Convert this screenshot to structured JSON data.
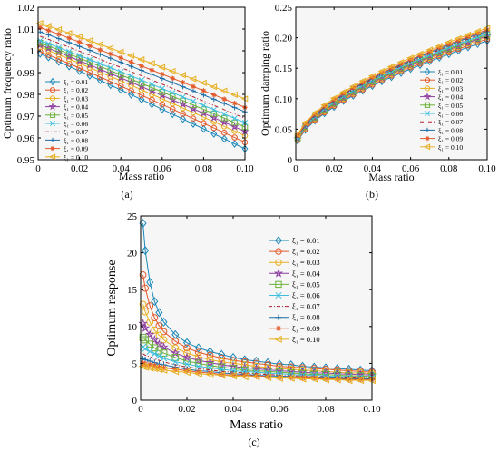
{
  "chart_data": [
    {
      "type": "line",
      "panel_label": "(a)",
      "xlabel": "Mass ratio",
      "ylabel": "Optimum frequency ratio",
      "xlim": [
        0,
        0.1
      ],
      "ylim": [
        0.95,
        1.02
      ],
      "xticks": [
        "0",
        "0.02",
        "0.04",
        "0.06",
        "0.08",
        "0.10"
      ],
      "yticks": [
        "0.95",
        "0.96",
        "0.97",
        "0.98",
        "0.99",
        "1",
        "1.01",
        "1.02"
      ],
      "legend_position": "left",
      "x": [
        0.001,
        0.005,
        0.01,
        0.015,
        0.02,
        0.025,
        0.03,
        0.035,
        0.04,
        0.045,
        0.05,
        0.055,
        0.06,
        0.065,
        0.07,
        0.075,
        0.08,
        0.085,
        0.09,
        0.095,
        0.1
      ],
      "series": [
        {
          "name": "ξ₁ = 0.01",
          "color": "#1a88b8",
          "marker": "diamond",
          "start": 0.999,
          "end": 0.955
        },
        {
          "name": "ξ₁ = 0.02",
          "color": "#e35a2c",
          "marker": "circle",
          "start": 1.0,
          "end": 0.958
        },
        {
          "name": "ξ₁ = 0.03",
          "color": "#e8b020",
          "marker": "circle",
          "start": 1.002,
          "end": 0.961
        },
        {
          "name": "ξ₁ = 0.04",
          "color": "#8e3fa0",
          "marker": "star",
          "start": 1.003,
          "end": 0.963
        },
        {
          "name": "ξ₁ = 0.05",
          "color": "#6ab23a",
          "marker": "square",
          "start": 1.004,
          "end": 0.965
        },
        {
          "name": "ξ₁ = 0.06",
          "color": "#3fbfe0",
          "marker": "x",
          "start": 1.005,
          "end": 0.967
        },
        {
          "name": "ξ₁ = 0.07",
          "color": "#b02030",
          "marker": "none",
          "start": 1.007,
          "end": 0.969
        },
        {
          "name": "ξ₁ = 0.08",
          "color": "#1c6fa8",
          "marker": "plus",
          "start": 1.009,
          "end": 0.972
        },
        {
          "name": "ξ₁ = 0.09",
          "color": "#e35a2c",
          "marker": "asterisk",
          "start": 1.011,
          "end": 0.974
        },
        {
          "name": "ξ₁ = 0.10",
          "color": "#e8b020",
          "marker": "triangle",
          "start": 1.013,
          "end": 0.978
        }
      ]
    },
    {
      "type": "line",
      "panel_label": "(b)",
      "xlabel": "Mass ratio",
      "ylabel": "Optimum damping ratio",
      "xlim": [
        0,
        0.1
      ],
      "ylim": [
        0,
        0.25
      ],
      "xticks": [
        "0",
        "0.02",
        "0.04",
        "0.06",
        "0.08",
        "0.10"
      ],
      "yticks": [
        "0",
        "0.05",
        "0.10",
        "0.15",
        "0.20",
        "0.25"
      ],
      "legend_position": "right",
      "x": [
        0.001,
        0.005,
        0.01,
        0.015,
        0.02,
        0.025,
        0.03,
        0.035,
        0.04,
        0.045,
        0.05,
        0.055,
        0.06,
        0.065,
        0.07,
        0.075,
        0.08,
        0.085,
        0.09,
        0.095,
        0.1
      ],
      "series": [
        {
          "name": "ξ₁ = 0.01",
          "color": "#1a88b8",
          "marker": "diamond",
          "start": 0.02,
          "end": 0.195
        },
        {
          "name": "ξ₁ = 0.02",
          "color": "#e35a2c",
          "marker": "circle",
          "start": 0.021,
          "end": 0.198
        },
        {
          "name": "ξ₁ = 0.03",
          "color": "#e8b020",
          "marker": "circle",
          "start": 0.022,
          "end": 0.201
        },
        {
          "name": "ξ₁ = 0.04",
          "color": "#8e3fa0",
          "marker": "star",
          "start": 0.023,
          "end": 0.203
        },
        {
          "name": "ξ₁ = 0.05",
          "color": "#6ab23a",
          "marker": "square",
          "start": 0.024,
          "end": 0.205
        },
        {
          "name": "ξ₁ = 0.06",
          "color": "#3fbfe0",
          "marker": "x",
          "start": 0.025,
          "end": 0.207
        },
        {
          "name": "ξ₁ = 0.07",
          "color": "#b02030",
          "marker": "none",
          "start": 0.026,
          "end": 0.209
        },
        {
          "name": "ξ₁ = 0.08",
          "color": "#1c6fa8",
          "marker": "plus",
          "start": 0.027,
          "end": 0.211
        },
        {
          "name": "ξ₁ = 0.09",
          "color": "#e35a2c",
          "marker": "asterisk",
          "start": 0.028,
          "end": 0.213
        },
        {
          "name": "ξ₁ = 0.10",
          "color": "#e8b020",
          "marker": "triangle",
          "start": 0.03,
          "end": 0.216
        }
      ]
    },
    {
      "type": "line",
      "panel_label": "(c)",
      "xlabel": "Mass ratio",
      "ylabel": "Optimum response",
      "xlim": [
        0,
        0.1
      ],
      "ylim": [
        0,
        25
      ],
      "xticks": [
        "0",
        "0.02",
        "0.04",
        "0.06",
        "0.08",
        "0.10"
      ],
      "yticks": [
        "0",
        "5",
        "10",
        "15",
        "20",
        "25"
      ],
      "legend_position": "top-right",
      "x": [
        0.001,
        0.002,
        0.004,
        0.006,
        0.008,
        0.01,
        0.015,
        0.02,
        0.025,
        0.03,
        0.035,
        0.04,
        0.045,
        0.05,
        0.055,
        0.06,
        0.065,
        0.07,
        0.075,
        0.08,
        0.085,
        0.09,
        0.095,
        0.1
      ],
      "series": [
        {
          "name": "ξ₁ = 0.01",
          "color": "#1a88b8",
          "marker": "diamond",
          "y": [
            24.0,
            20.3,
            16.0,
            13.4,
            11.9,
            10.6,
            8.9,
            7.8,
            7.1,
            6.6,
            6.2,
            5.8,
            5.5,
            5.3,
            5.1,
            4.9,
            4.8,
            4.6,
            4.5,
            4.4,
            4.3,
            4.2,
            4.1,
            4.0
          ]
        },
        {
          "name": "ξ₁ = 0.02",
          "color": "#e35a2c",
          "marker": "circle",
          "y": [
            17.0,
            15.2,
            12.8,
            11.2,
            10.1,
            9.3,
            8.0,
            7.1,
            6.5,
            6.1,
            5.7,
            5.4,
            5.2,
            5.0,
            4.8,
            4.6,
            4.5,
            4.4,
            4.3,
            4.2,
            4.1,
            4.0,
            3.9,
            3.8
          ]
        },
        {
          "name": "ξ₁ = 0.03",
          "color": "#e8b020",
          "marker": "circle",
          "y": [
            13.0,
            12.0,
            10.6,
            9.5,
            8.8,
            8.2,
            7.1,
            6.4,
            5.9,
            5.5,
            5.2,
            5.0,
            4.8,
            4.6,
            4.4,
            4.3,
            4.2,
            4.1,
            4.0,
            3.9,
            3.8,
            3.7,
            3.7,
            3.6
          ]
        },
        {
          "name": "ξ₁ = 0.04",
          "color": "#8e3fa0",
          "marker": "star",
          "y": [
            10.4,
            9.8,
            8.9,
            8.2,
            7.6,
            7.2,
            6.4,
            5.8,
            5.4,
            5.1,
            4.8,
            4.6,
            4.4,
            4.3,
            4.1,
            4.0,
            3.9,
            3.8,
            3.7,
            3.7,
            3.6,
            3.5,
            3.5,
            3.4
          ]
        },
        {
          "name": "ξ₁ = 0.05",
          "color": "#6ab23a",
          "marker": "square",
          "y": [
            8.5,
            8.2,
            7.6,
            7.1,
            6.7,
            6.4,
            5.8,
            5.3,
            5.0,
            4.7,
            4.5,
            4.3,
            4.1,
            4.0,
            3.9,
            3.8,
            3.7,
            3.6,
            3.5,
            3.5,
            3.4,
            3.3,
            3.3,
            3.2
          ]
        },
        {
          "name": "ξ₁ = 0.06",
          "color": "#3fbfe0",
          "marker": "x",
          "y": [
            7.2,
            7.0,
            6.6,
            6.3,
            6.0,
            5.7,
            5.2,
            4.9,
            4.6,
            4.4,
            4.2,
            4.0,
            3.9,
            3.8,
            3.7,
            3.6,
            3.5,
            3.4,
            3.4,
            3.3,
            3.2,
            3.2,
            3.1,
            3.1
          ]
        },
        {
          "name": "ξ₁ = 0.07",
          "color": "#b02030",
          "marker": "none",
          "y": [
            6.3,
            6.1,
            5.9,
            5.6,
            5.4,
            5.2,
            4.8,
            4.5,
            4.3,
            4.1,
            3.9,
            3.8,
            3.7,
            3.6,
            3.5,
            3.4,
            3.3,
            3.3,
            3.2,
            3.2,
            3.1,
            3.0,
            3.0,
            3.0
          ]
        },
        {
          "name": "ξ₁ = 0.08",
          "color": "#1c6fa8",
          "marker": "plus",
          "y": [
            5.6,
            5.5,
            5.3,
            5.1,
            4.9,
            4.8,
            4.5,
            4.2,
            4.0,
            3.9,
            3.7,
            3.6,
            3.5,
            3.4,
            3.3,
            3.3,
            3.2,
            3.1,
            3.1,
            3.0,
            3.0,
            2.9,
            2.9,
            2.9
          ]
        },
        {
          "name": "ξ₁ = 0.09",
          "color": "#e35a2c",
          "marker": "asterisk",
          "y": [
            5.0,
            4.9,
            4.8,
            4.7,
            4.5,
            4.4,
            4.2,
            4.0,
            3.8,
            3.7,
            3.5,
            3.4,
            3.4,
            3.3,
            3.2,
            3.1,
            3.1,
            3.0,
            3.0,
            2.9,
            2.9,
            2.8,
            2.8,
            2.8
          ]
        },
        {
          "name": "ξ₁ = 0.10",
          "color": "#e8b020",
          "marker": "triangle",
          "y": [
            4.6,
            4.5,
            4.4,
            4.3,
            4.2,
            4.1,
            3.9,
            3.8,
            3.6,
            3.5,
            3.4,
            3.3,
            3.2,
            3.2,
            3.1,
            3.0,
            3.0,
            2.9,
            2.9,
            2.8,
            2.8,
            2.7,
            2.7,
            2.7
          ]
        }
      ]
    }
  ]
}
